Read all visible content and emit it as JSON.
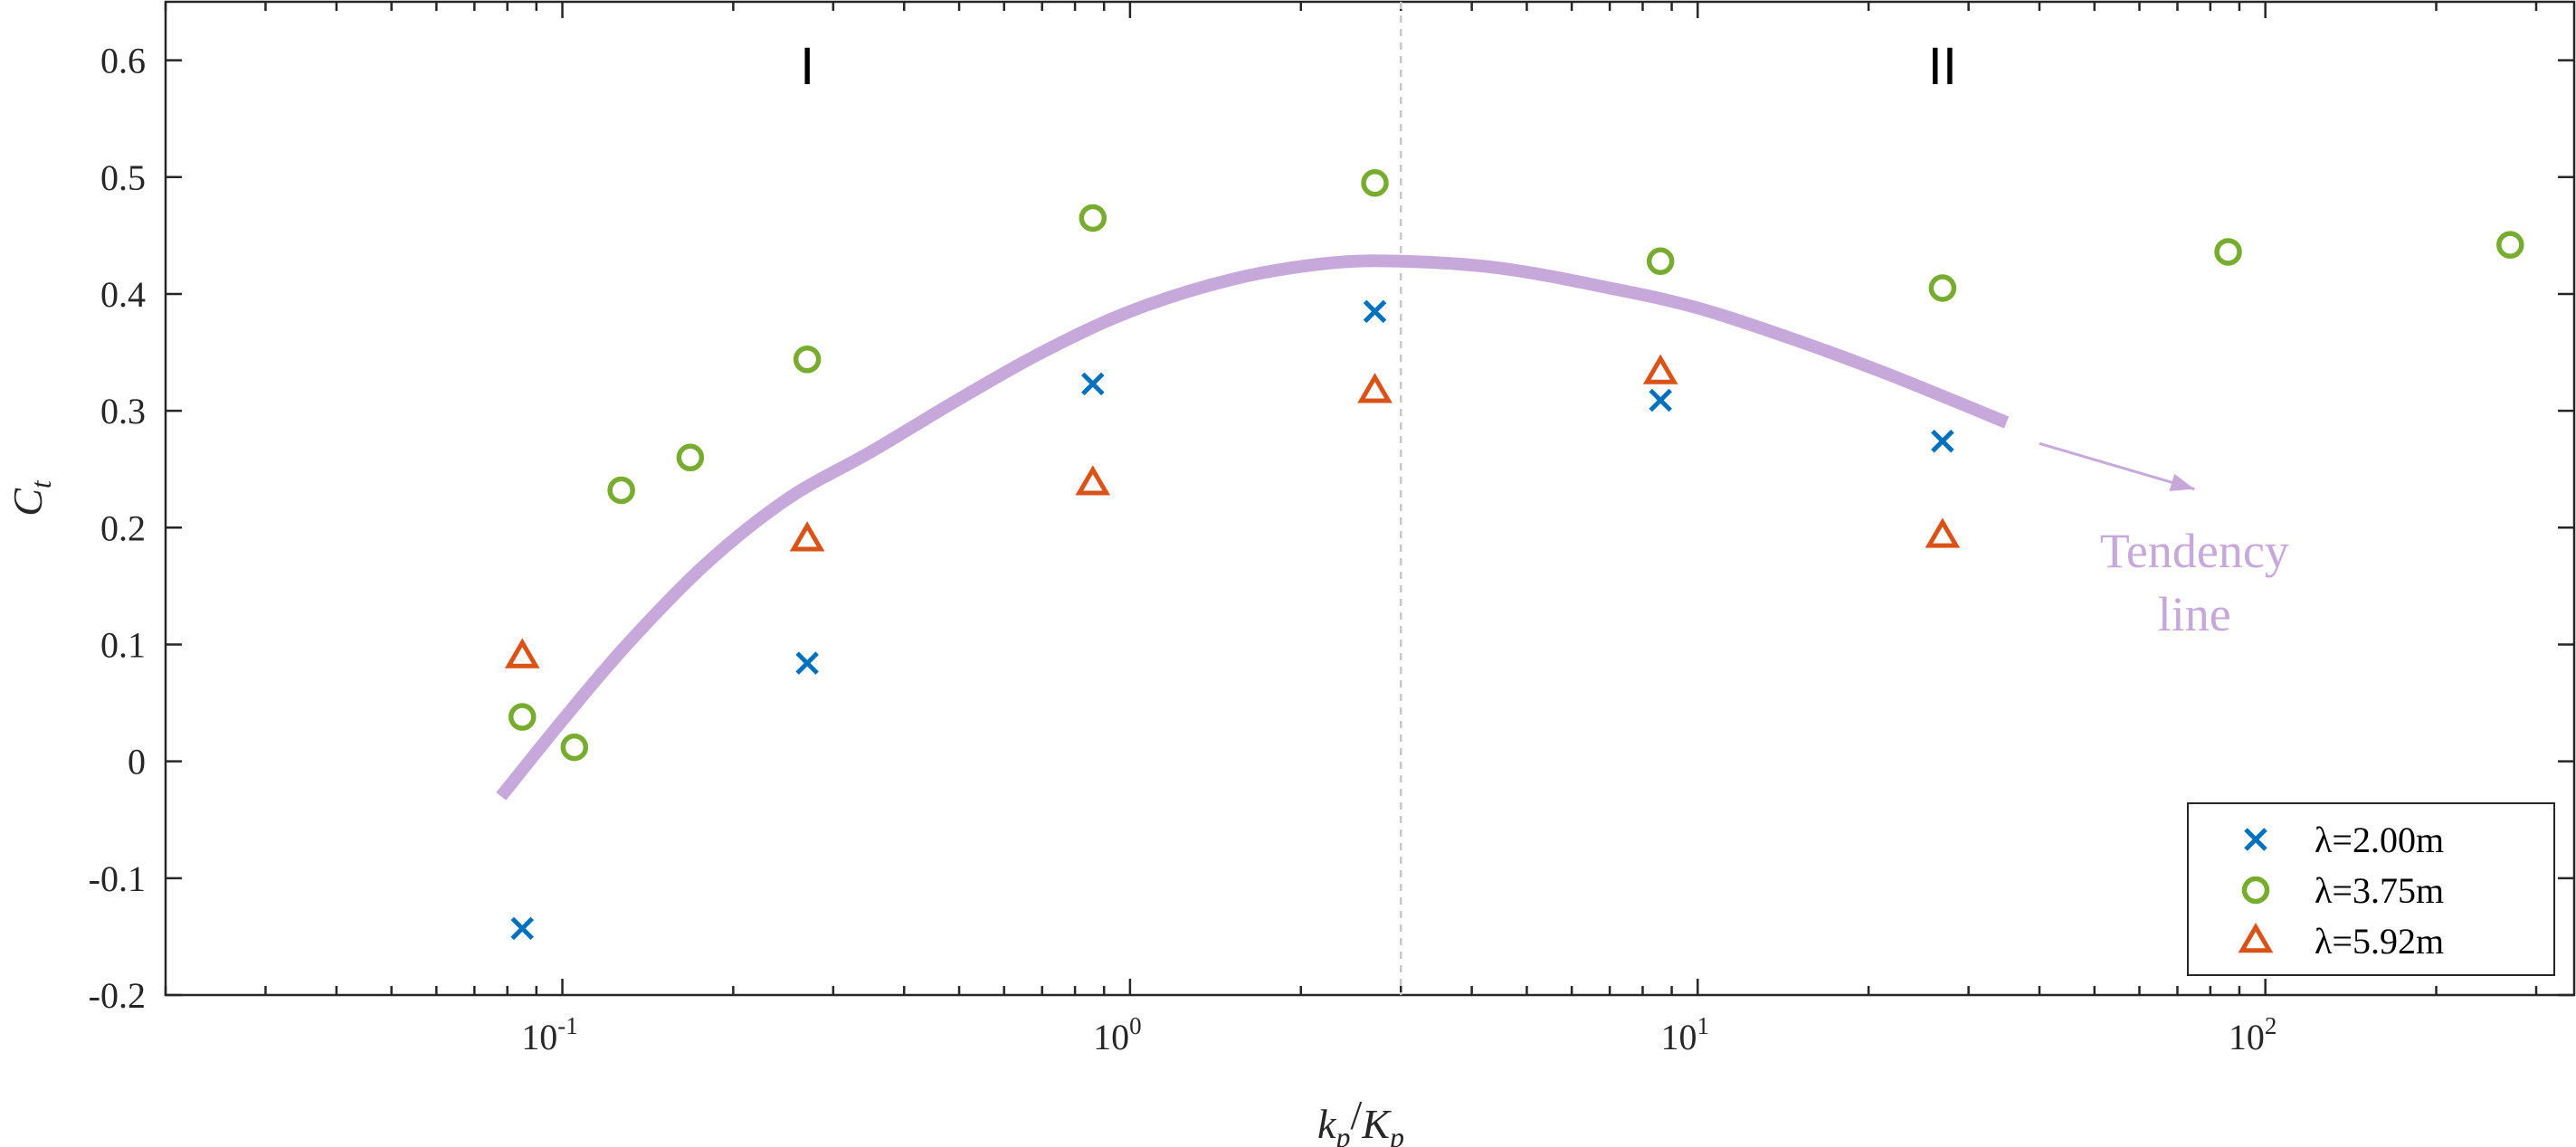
{
  "chart_data": {
    "type": "scatter",
    "title": "",
    "xlabel": {
      "base": "k",
      "sub": "p",
      "sep": "/",
      "base2": "K",
      "sub2": "p"
    },
    "ylabel": {
      "base": "C",
      "sub": "t"
    },
    "xscale": "log",
    "xlim": [
      0.02,
      350
    ],
    "ylim": [
      -0.2,
      0.65
    ],
    "grid": false,
    "yticks": [
      {
        "value": 0.6,
        "label": "0.6"
      },
      {
        "value": 0.5,
        "label": "0.5"
      },
      {
        "value": 0.4,
        "label": "0.4"
      },
      {
        "value": 0.3,
        "label": "0.3"
      },
      {
        "value": 0.2,
        "label": "0.2"
      },
      {
        "value": 0.1,
        "label": "0.1"
      },
      {
        "value": 0,
        "label": "0"
      },
      {
        "value": -0.1,
        "label": "-0.1"
      },
      {
        "value": -0.2,
        "label": "-0.2"
      }
    ],
    "xticks": [
      {
        "value": 0.1,
        "base": "10",
        "exp": "-1"
      },
      {
        "value": 1,
        "base": "10",
        "exp": "0"
      },
      {
        "value": 10,
        "base": "10",
        "exp": "1"
      },
      {
        "value": 100,
        "base": "10",
        "exp": "2"
      }
    ],
    "series": [
      {
        "name": "λ=2.00m",
        "marker": "x",
        "color": "#0072bd",
        "points": [
          [
            0.085,
            -0.143
          ],
          [
            0.27,
            0.084
          ],
          [
            0.86,
            0.323
          ],
          [
            2.7,
            0.385
          ],
          [
            8.6,
            0.309
          ],
          [
            27,
            0.274
          ]
        ]
      },
      {
        "name": "λ=3.75m",
        "marker": "o",
        "color": "#77ac30",
        "points": [
          [
            0.085,
            0.038
          ],
          [
            0.105,
            0.012
          ],
          [
            0.127,
            0.232
          ],
          [
            0.168,
            0.26
          ],
          [
            0.27,
            0.344
          ],
          [
            0.86,
            0.465
          ],
          [
            2.7,
            0.495
          ],
          [
            8.6,
            0.428
          ],
          [
            27,
            0.405
          ],
          [
            86,
            0.436
          ],
          [
            270,
            0.442
          ]
        ]
      },
      {
        "name": "λ=5.92m",
        "marker": "triangle",
        "color": "#d95319",
        "points": [
          [
            0.085,
            0.09
          ],
          [
            0.27,
            0.19
          ],
          [
            0.86,
            0.238
          ],
          [
            2.7,
            0.317
          ],
          [
            8.6,
            0.333
          ],
          [
            27,
            0.193
          ]
        ]
      }
    ],
    "tendency_line": {
      "color": "#c7a8db",
      "points": [
        [
          0.078,
          -0.03
        ],
        [
          0.1,
          0.035
        ],
        [
          0.13,
          0.1
        ],
        [
          0.18,
          0.17
        ],
        [
          0.25,
          0.225
        ],
        [
          0.35,
          0.265
        ],
        [
          0.5,
          0.31
        ],
        [
          0.7,
          0.35
        ],
        [
          1.0,
          0.385
        ],
        [
          1.5,
          0.412
        ],
        [
          2.2,
          0.426
        ],
        [
          3.0,
          0.428
        ],
        [
          4.5,
          0.422
        ],
        [
          7.0,
          0.405
        ],
        [
          10,
          0.388
        ],
        [
          15,
          0.36
        ],
        [
          22,
          0.33
        ],
        [
          35,
          0.29
        ]
      ]
    },
    "divider_x": 3.0,
    "regions": [
      {
        "label": "I",
        "x": 0.27,
        "y": 0.595
      },
      {
        "label": "II",
        "x": 27,
        "y": 0.595
      }
    ],
    "annotation": {
      "lines": [
        "Tendency",
        "line"
      ],
      "arrow_from": [
        40,
        0.272
      ],
      "arrow_to": [
        75,
        0.233
      ],
      "text_x": 75,
      "text_y": 0.18
    },
    "legend_position": "bottom-right"
  }
}
